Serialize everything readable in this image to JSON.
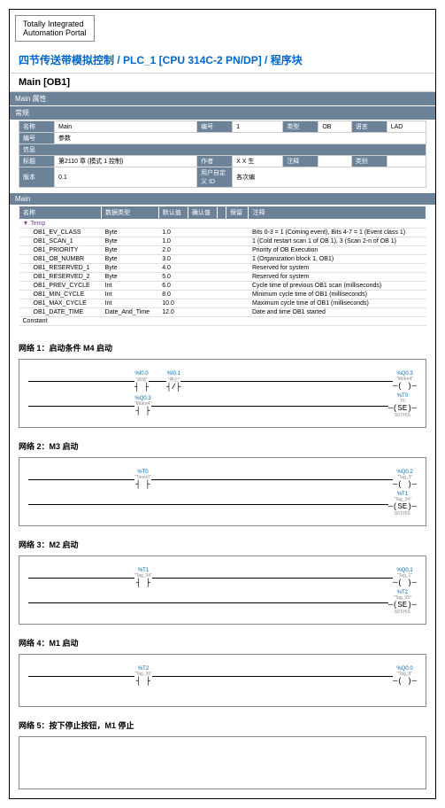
{
  "header_label": "Totally Integrated\nAutomation Portal",
  "title": "四节传送带模拟控制 / PLC_1 [CPU 314C-2 PN/DP] / 程序块",
  "subtitle": "Main [OB1]",
  "section_attr": "Main 属性",
  "section_general": "常规",
  "props": {
    "name_label": "名称",
    "name": "Main",
    "num_label": "编号",
    "num": "1",
    "type_label": "类型",
    "type": "OB",
    "lang_label": "语言",
    "lang": "LAD",
    "enc_label": "编号",
    "enc": "参数",
    "info_label": "信息",
    "title_label": "标题",
    "title_val": "第2110 章 (模式 1 控制)",
    "author_label": "作者",
    "author": "X X 生",
    "comment_label": "注释",
    "comment": "",
    "family_label": "类别",
    "family": "",
    "ver_label": "版本",
    "ver": "0.1",
    "uid_label": "用户自定义 ID",
    "uid": "各次编"
  },
  "section_main": "Main",
  "data_headers": [
    "名称",
    "数据类型",
    "默认值",
    "确认值",
    "",
    "保留",
    "注释"
  ],
  "temp_label": "Temp",
  "rows": [
    {
      "n": "OB1_EV_CLASS",
      "t": "Byte",
      "d": "1.0",
      "c": "Bits 0-3 = 1 (Coming event), Bits 4-7 = 1 (Event class 1)"
    },
    {
      "n": "OB1_SCAN_1",
      "t": "Byte",
      "d": "1.0",
      "c": "1 (Cold restart scan 1 of OB 1), 3 (Scan 2-n of OB 1)"
    },
    {
      "n": "OB1_PRIORITY",
      "t": "Byte",
      "d": "2.0",
      "c": "Priority of OB Execution"
    },
    {
      "n": "OB1_OB_NUMBR",
      "t": "Byte",
      "d": "3.0",
      "c": "1 (Organization block 1, OB1)"
    },
    {
      "n": "OB1_RESERVED_1",
      "t": "Byte",
      "d": "4.0",
      "c": "Reserved for system"
    },
    {
      "n": "OB1_RESERVED_2",
      "t": "Byte",
      "d": "5.0",
      "c": "Reserved for system"
    },
    {
      "n": "OB1_PREV_CYCLE",
      "t": "Int",
      "d": "6.0",
      "c": "Cycle time of previous OB1 scan (milliseconds)"
    },
    {
      "n": "OB1_MIN_CYCLE",
      "t": "Int",
      "d": "8.0",
      "c": "Minimum cycle time of OB1 (milliseconds)"
    },
    {
      "n": "OB1_MAX_CYCLE",
      "t": "Int",
      "d": "10.0",
      "c": "Maximum cycle time of OB1 (milliseconds)"
    },
    {
      "n": "OB1_DATE_TIME",
      "t": "Date_And_Time",
      "d": "12.0",
      "c": "Date and time OB1 started"
    }
  ],
  "constant_label": "Constant",
  "networks": [
    {
      "title": "网络 1：启动条件 M4 启动",
      "rows": [
        {
          "contacts": [
            {
              "tag": "%I0.0",
              "name": "\"启动\"",
              "sym": "┤ ├"
            },
            {
              "tag": "%I0.1",
              "name": "\"停止\"",
              "sym": "┤/├"
            }
          ],
          "coil": {
            "tag": "%Q0.3",
            "name": "\"Motor4\"",
            "sym": "( )"
          }
        },
        {
          "contacts": [
            {
              "tag": "%Q0.3",
              "name": "\"Motor4\"",
              "sym": "┤ ├"
            }
          ],
          "coil": {
            "tag": "%T0",
            "name": "T0",
            "sym": "(SE)",
            "sub": "S5T#5S"
          }
        }
      ]
    },
    {
      "title": "网络 2：M3 启动",
      "rows": [
        {
          "contacts": [
            {
              "tag": "%T0",
              "name": "\"Timer0\"",
              "sym": "┤ ├"
            }
          ],
          "coil": {
            "tag": "%Q0.2",
            "name": "\"Tag_3\"",
            "sym": "( )"
          }
        },
        {
          "contacts": [],
          "coil": {
            "tag": "%T1",
            "name": "\"Tag_34\"",
            "sym": "(SE)",
            "sub": "S5T#5S"
          }
        }
      ]
    },
    {
      "title": "网络 3：M2 启动",
      "rows": [
        {
          "contacts": [
            {
              "tag": "%T1",
              "name": "\"Tag_34\"",
              "sym": "┤ ├"
            }
          ],
          "coil": {
            "tag": "%Q0.1",
            "name": "\"Tag_1\"",
            "sym": "( )"
          }
        },
        {
          "contacts": [],
          "coil": {
            "tag": "%T2",
            "name": "\"Tag_35\"",
            "sym": "(SE)",
            "sub": "S5T#5S"
          }
        }
      ]
    },
    {
      "title": "网络 4：M1 启动",
      "rows": [
        {
          "contacts": [
            {
              "tag": "%T2",
              "name": "\"Tag_35\"",
              "sym": "┤ ├"
            }
          ],
          "coil": {
            "tag": "%Q0.0",
            "name": "\"Tag_8\"",
            "sym": "( )"
          }
        }
      ]
    },
    {
      "title": "网络 5：按下停止按钮，M1 停止"
    }
  ]
}
